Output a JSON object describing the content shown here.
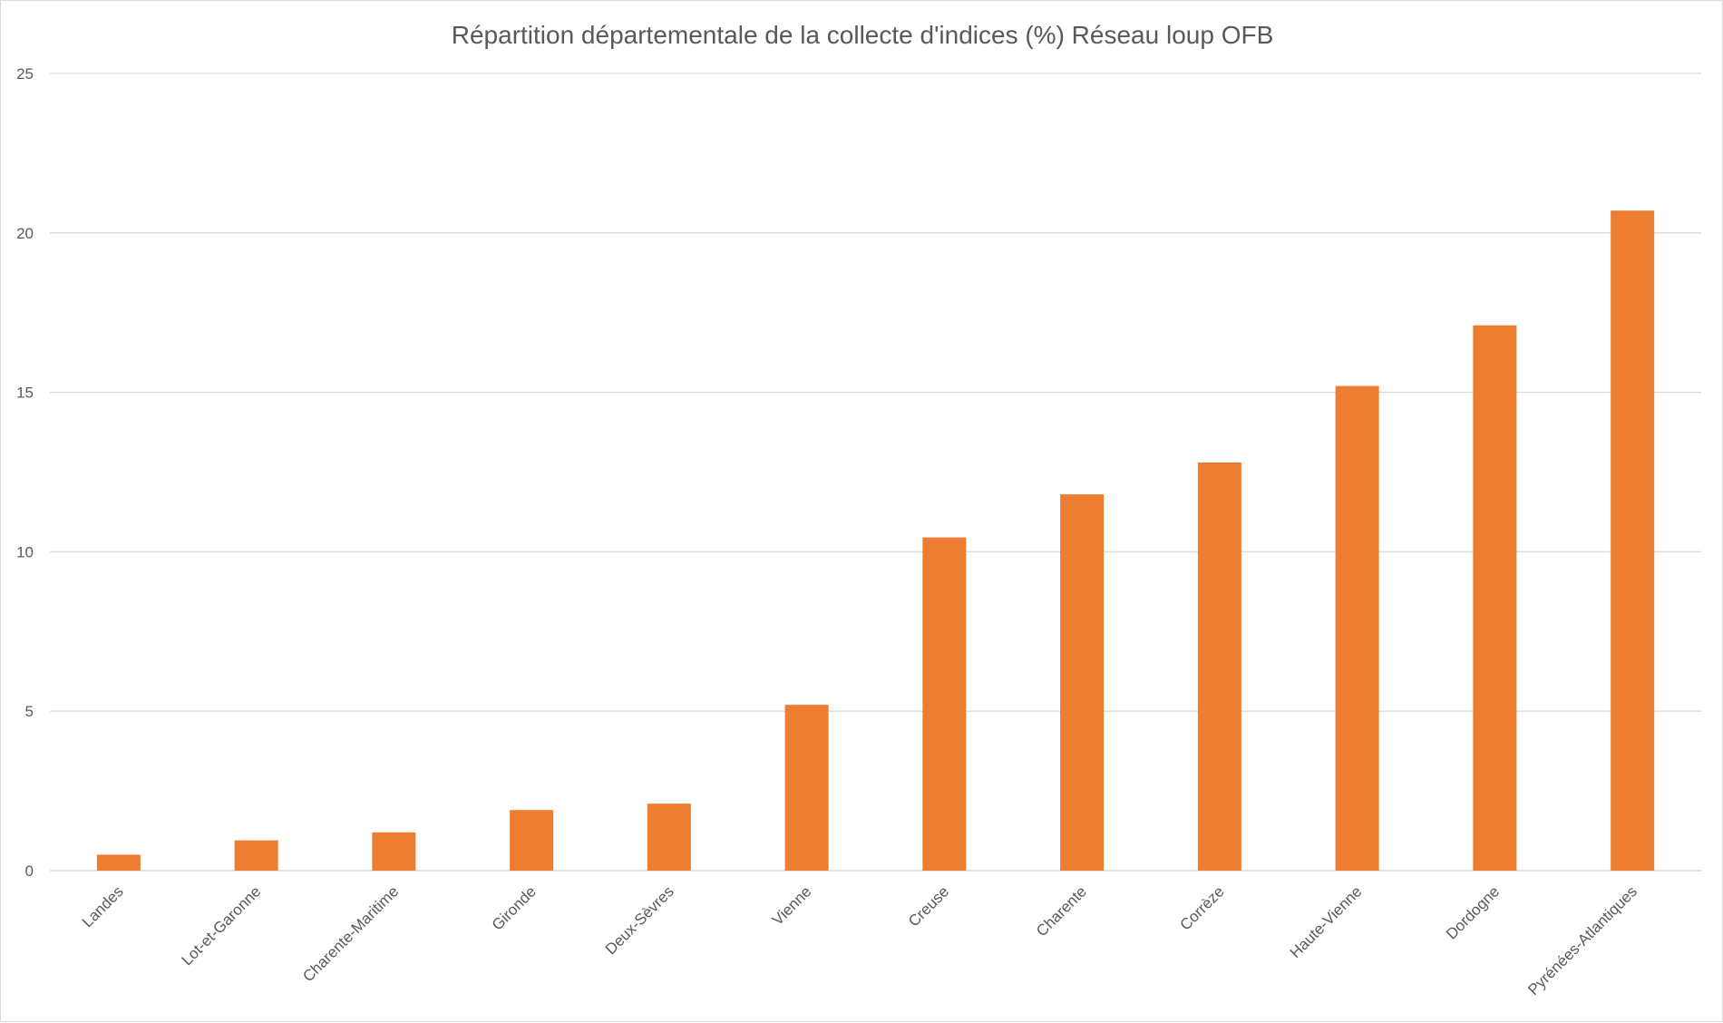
{
  "chart_data": {
    "type": "bar",
    "title": "Répartition départementale de la collecte d'indices (%) Réseau loup OFB",
    "xlabel": "",
    "ylabel": "",
    "categories": [
      "Landes",
      "Lot-et-Garonne",
      "Charente-Maritime",
      "Gironde",
      "Deux-Sèvres",
      "Vienne",
      "Creuse",
      "Charente",
      "Corrèze",
      "Haute-Vienne",
      "Dordogne",
      "Pyrénées-Atlantiques"
    ],
    "series": [
      {
        "values": [
          0.5,
          0.95,
          1.2,
          1.9,
          2.1,
          5.2,
          10.45,
          11.8,
          12.8,
          15.2,
          17.1,
          20.7
        ],
        "color": "#ed7d31"
      }
    ],
    "yticks": [
      "0",
      "5",
      "10",
      "15",
      "20",
      "25"
    ],
    "ylim": [
      0,
      25
    ],
    "grid": true,
    "legend": "none",
    "gridline_color": "#d9d9d9"
  }
}
